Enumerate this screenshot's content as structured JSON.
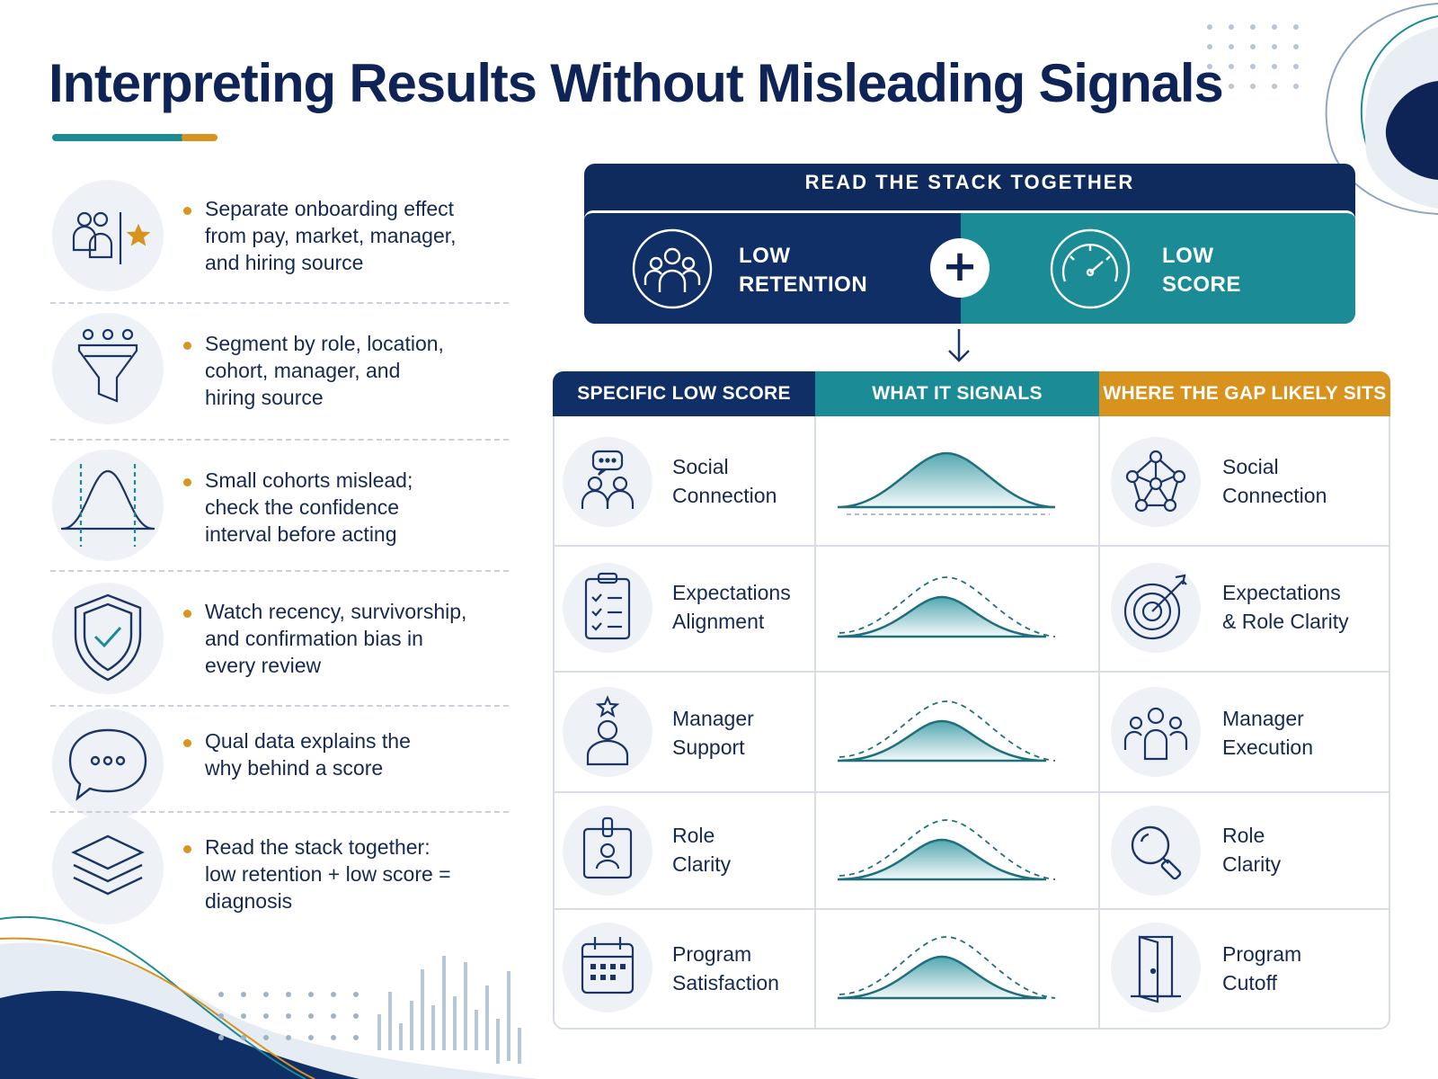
{
  "title": "Interpreting Results Without Misleading Signals",
  "colors": {
    "navy": "#0f2f66",
    "teal": "#1b8b96",
    "amber": "#d7931d",
    "bullet": "#d89520"
  },
  "left_list": [
    {
      "icon": "people-star-icon",
      "lines": [
        "Separate onboarding effect",
        "from pay, market, manager,",
        "and hiring source"
      ]
    },
    {
      "icon": "funnel-icon",
      "lines": [
        "Segment by role, location,",
        "cohort, manager, and",
        "hiring source"
      ]
    },
    {
      "icon": "bell-curve-icon",
      "lines": [
        "Small cohorts mislead;",
        "check the confidence",
        "interval before acting"
      ]
    },
    {
      "icon": "shield-check-icon",
      "lines": [
        "Watch recency, survivorship,",
        "and confirmation bias in",
        "every review"
      ]
    },
    {
      "icon": "chat-bubble-icon",
      "lines": [
        "Qual data explains the",
        "why behind a score"
      ]
    },
    {
      "icon": "layers-icon",
      "lines": [
        "Read the stack together:",
        "low retention + low score =",
        "diagnosis"
      ]
    }
  ],
  "stack": {
    "title": "READ THE STACK TOGETHER",
    "left": {
      "icon": "group-icon",
      "lines": [
        "LOW",
        "RETENTION"
      ]
    },
    "plus": "+",
    "right": {
      "icon": "gauge-icon",
      "lines": [
        "LOW",
        "SCORE"
      ]
    },
    "arrow_icon": "arrow-down-icon"
  },
  "table": {
    "headers": [
      "SPECIFIC LOW SCORE",
      "WHAT IT SIGNALS",
      "WHERE THE GAP LIKELY SITS"
    ],
    "rows": [
      {
        "score_icon": "people-chat-icon",
        "score": [
          "Social",
          "Connection"
        ],
        "signal_icon": "bell-curve-baseline-icon",
        "gap_icon": "network-icon",
        "gap": [
          "Social",
          "Connection"
        ]
      },
      {
        "score_icon": "clipboard-checklist-icon",
        "score": [
          "Expectations",
          "Alignment"
        ],
        "signal_icon": "bell-curve-dashed-icon",
        "gap_icon": "target-arrow-icon",
        "gap": [
          "Expectations",
          "& Role Clarity"
        ]
      },
      {
        "score_icon": "person-star-icon",
        "score": [
          "Manager",
          "Support"
        ],
        "signal_icon": "bell-curve-dashed-icon",
        "gap_icon": "team-icon",
        "gap": [
          "Manager",
          "Execution"
        ]
      },
      {
        "score_icon": "id-badge-icon",
        "score": [
          "Role",
          "Clarity"
        ],
        "signal_icon": "bell-curve-dashed-icon",
        "gap_icon": "magnifier-icon",
        "gap": [
          "Role",
          "Clarity"
        ]
      },
      {
        "score_icon": "calendar-icon",
        "score": [
          "Program",
          "Satisfaction"
        ],
        "signal_icon": "bell-curve-dashed-icon",
        "gap_icon": "door-exit-icon",
        "gap": [
          "Program",
          "Cutoff"
        ]
      }
    ]
  }
}
